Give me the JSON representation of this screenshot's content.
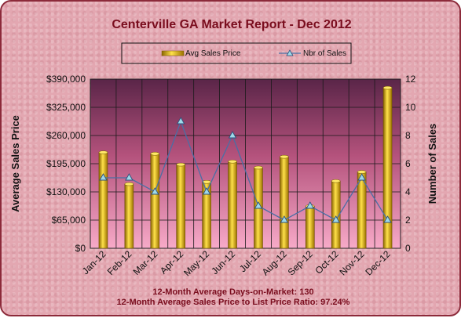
{
  "chart_data": {
    "type": "bar",
    "title": "Centerville GA Market Report - Dec 2012",
    "categories": [
      "Jan-12",
      "Feb-12",
      "Mar-12",
      "Apr-12",
      "May-12",
      "Jun-12",
      "Jul-12",
      "Aug-12",
      "Sep-12",
      "Oct-12",
      "Nov-12",
      "Dec-12"
    ],
    "series": [
      {
        "name": "Avg Sales Price",
        "type": "bar",
        "axis": "left",
        "values": [
          221000,
          148000,
          218000,
          193000,
          153000,
          200000,
          186000,
          211000,
          97000,
          155000,
          176000,
          370000
        ]
      },
      {
        "name": "Nbr of Sales",
        "type": "line",
        "axis": "right",
        "values": [
          5,
          5,
          4,
          9,
          4,
          8,
          3,
          2,
          3,
          2,
          5,
          2
        ]
      }
    ],
    "ylabel": "Average Sales Price",
    "y2label": "Number of Sales",
    "ylim": [
      0,
      390000
    ],
    "y2lim": [
      0,
      12
    ],
    "yticks": [
      "$0",
      "$65,000",
      "$130,000",
      "$195,000",
      "$260,000",
      "$325,000",
      "$390,000"
    ],
    "y2ticks": [
      "0",
      "2",
      "4",
      "6",
      "8",
      "10",
      "12"
    ],
    "legend_position": "top",
    "grid": true,
    "footnotes": [
      "12-Month Average Days-on-Market: 130",
      "12-Month Average Sales Price to List Price Ratio: 97.24%"
    ]
  },
  "colors": {
    "bar": "#e6b800",
    "line": "#4a6fa5",
    "marker": "#9fd9e8",
    "title": "#7a0d1e"
  }
}
